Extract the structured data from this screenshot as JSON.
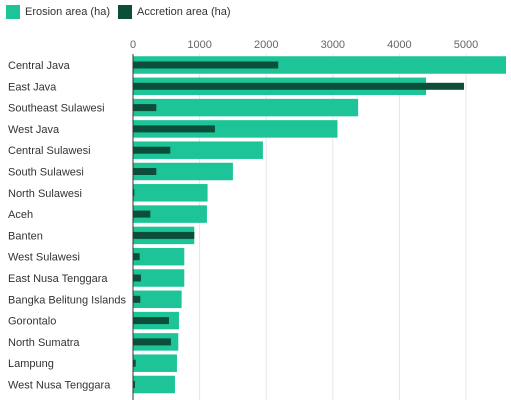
{
  "chart_data": {
    "type": "bar",
    "orientation": "horizontal",
    "title": "",
    "xlabel": "",
    "ylabel": "",
    "categories": [
      "Central Java",
      "East Java",
      "Southeast Sulawesi",
      "West Java",
      "Central Sulawesi",
      "South Sulawesi",
      "North Sulawesi",
      "Aceh",
      "Banten",
      "West Sulawesi",
      "East Nusa Tenggara",
      "Bangka Belitung Islands",
      "Gorontalo",
      "North Sumatra",
      "Lampung",
      "West Nusa Tenggara"
    ],
    "series": [
      {
        "name": "Erosion area (ha)",
        "color": "#1dc497",
        "values": [
          5600,
          4400,
          3380,
          3070,
          1950,
          1500,
          1120,
          1110,
          920,
          770,
          770,
          730,
          690,
          680,
          660,
          630
        ]
      },
      {
        "name": "Accretion area (ha)",
        "color": "#0b4f3a",
        "values": [
          2180,
          4970,
          350,
          1230,
          560,
          350,
          20,
          260,
          920,
          100,
          120,
          110,
          540,
          570,
          40,
          30
        ]
      }
    ],
    "xticks": [
      0,
      1000,
      2000,
      3000,
      4000,
      5000
    ],
    "xlim": [
      0,
      5600
    ],
    "grid": true,
    "legend_position": "top-left"
  }
}
